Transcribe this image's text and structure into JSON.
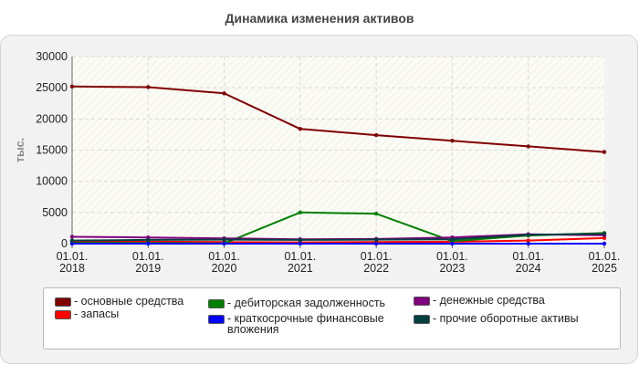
{
  "chart_data": {
    "type": "line",
    "title": "Динамика изменения активов",
    "ylabel": "тыс.",
    "xlabel": "",
    "x": [
      "01.01.\n2018",
      "01.01.\n2019",
      "01.01.\n2020",
      "01.01.\n2021",
      "01.01.\n2022",
      "01.01.\n2023",
      "01.01.\n2024",
      "01.01.\n2025"
    ],
    "ylim": [
      0,
      30000
    ],
    "yticks": [
      "0",
      "5000",
      "10000",
      "15000",
      "20000",
      "25000",
      "30000"
    ],
    "grid": true,
    "legend_position": "bottom",
    "series": [
      {
        "name": "- основные средства",
        "color": "#800000",
        "values": [
          25200,
          25100,
          24100,
          18400,
          17400,
          16500,
          15600,
          14700
        ]
      },
      {
        "name": "- запасы",
        "color": "#ff0000",
        "values": [
          300,
          300,
          250,
          200,
          250,
          300,
          500,
          900
        ]
      },
      {
        "name": "- дебиторская задолженность",
        "color": "#008000",
        "values": [
          100,
          100,
          50,
          5000,
          4800,
          400,
          1300,
          1700
        ]
      },
      {
        "name": "- краткосрочные финансовые вложения",
        "color": "#0000ff",
        "values": [
          0,
          0,
          0,
          0,
          0,
          0,
          0,
          0
        ]
      },
      {
        "name": "- денежные средства",
        "color": "#800080",
        "values": [
          1100,
          1000,
          850,
          700,
          750,
          1000,
          1500,
          1350
        ]
      },
      {
        "name": "- прочие оборотные активы",
        "color": "#004040",
        "values": [
          500,
          600,
          650,
          600,
          650,
          700,
          1400,
          1600
        ]
      }
    ]
  }
}
